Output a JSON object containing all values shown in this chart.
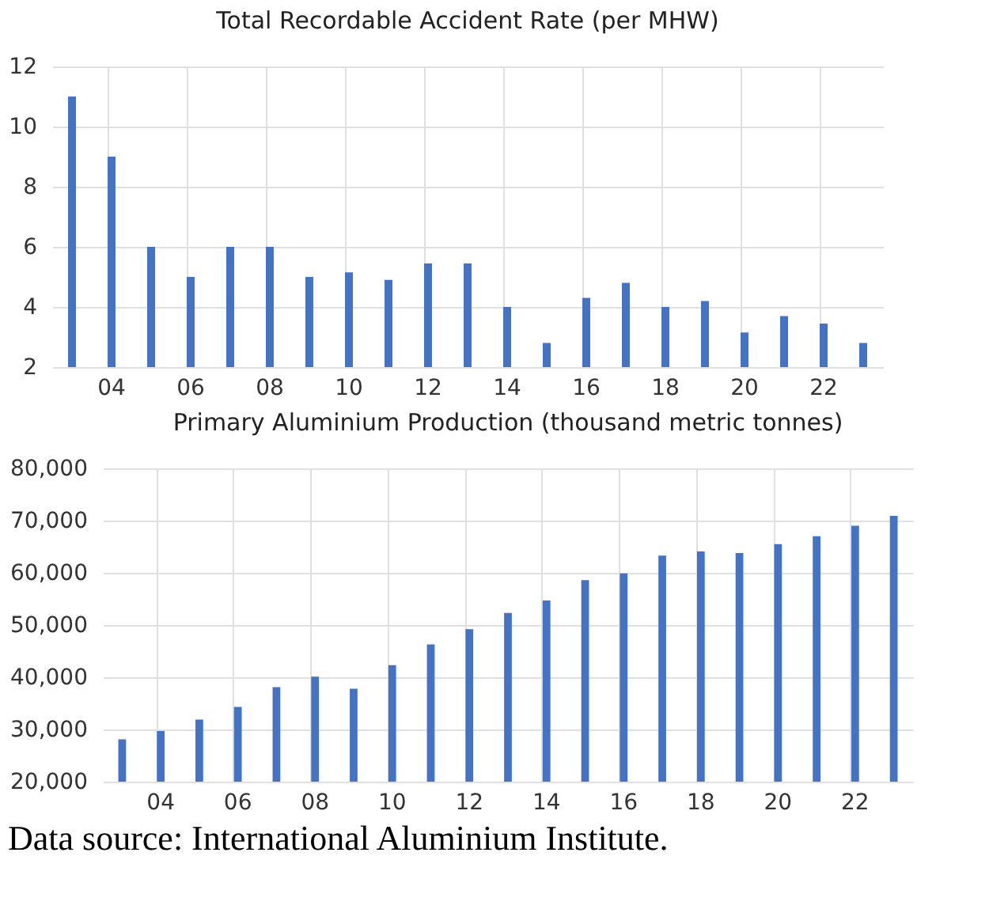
{
  "chart_data": [
    {
      "type": "bar",
      "title": "Total Recordable Accident Rate (per MHW)",
      "categories": [
        null,
        "04",
        null,
        "06",
        null,
        "08",
        null,
        "10",
        null,
        "12",
        null,
        "14",
        null,
        "16",
        null,
        "18",
        null,
        "20",
        null,
        "22",
        null
      ],
      "values": [
        11,
        9,
        6,
        5,
        6,
        6,
        5,
        5.15,
        4.9,
        5.45,
        5.45,
        4,
        2.8,
        4.3,
        4.8,
        4,
        4.2,
        3.15,
        3.7,
        3.45,
        2.8
      ],
      "color": "#4472c4",
      "ylim": [
        2,
        12
      ],
      "yticks": [
        2,
        4,
        6,
        8,
        10,
        12
      ],
      "grid": true
    },
    {
      "type": "bar",
      "title": "Primary Aluminium Production (thousand metric tonnes)",
      "categories": [
        null,
        "04",
        null,
        "06",
        null,
        "08",
        null,
        "10",
        null,
        "12",
        null,
        "14",
        null,
        "16",
        null,
        "18",
        null,
        "20",
        null,
        "22",
        null
      ],
      "values": [
        28100,
        29700,
        31900,
        34300,
        38100,
        40100,
        37800,
        42300,
        46300,
        49200,
        52300,
        54700,
        58600,
        59900,
        63300,
        64100,
        63800,
        65500,
        67000,
        69000,
        70900
      ],
      "color": "#4472c4",
      "ylim": [
        20000,
        80000
      ],
      "yticks": [
        {
          "value": 20000,
          "label": "20,000"
        },
        {
          "value": 30000,
          "label": "30,000"
        },
        {
          "value": 40000,
          "label": "40,000"
        },
        {
          "value": 50000,
          "label": "50,000"
        },
        {
          "value": 60000,
          "label": "60,000"
        },
        {
          "value": 70000,
          "label": "70,000"
        },
        {
          "value": 80000,
          "label": "80,000"
        }
      ],
      "grid": true,
      "annotations": [
        "Data source: International Aluminium Institute."
      ]
    }
  ]
}
